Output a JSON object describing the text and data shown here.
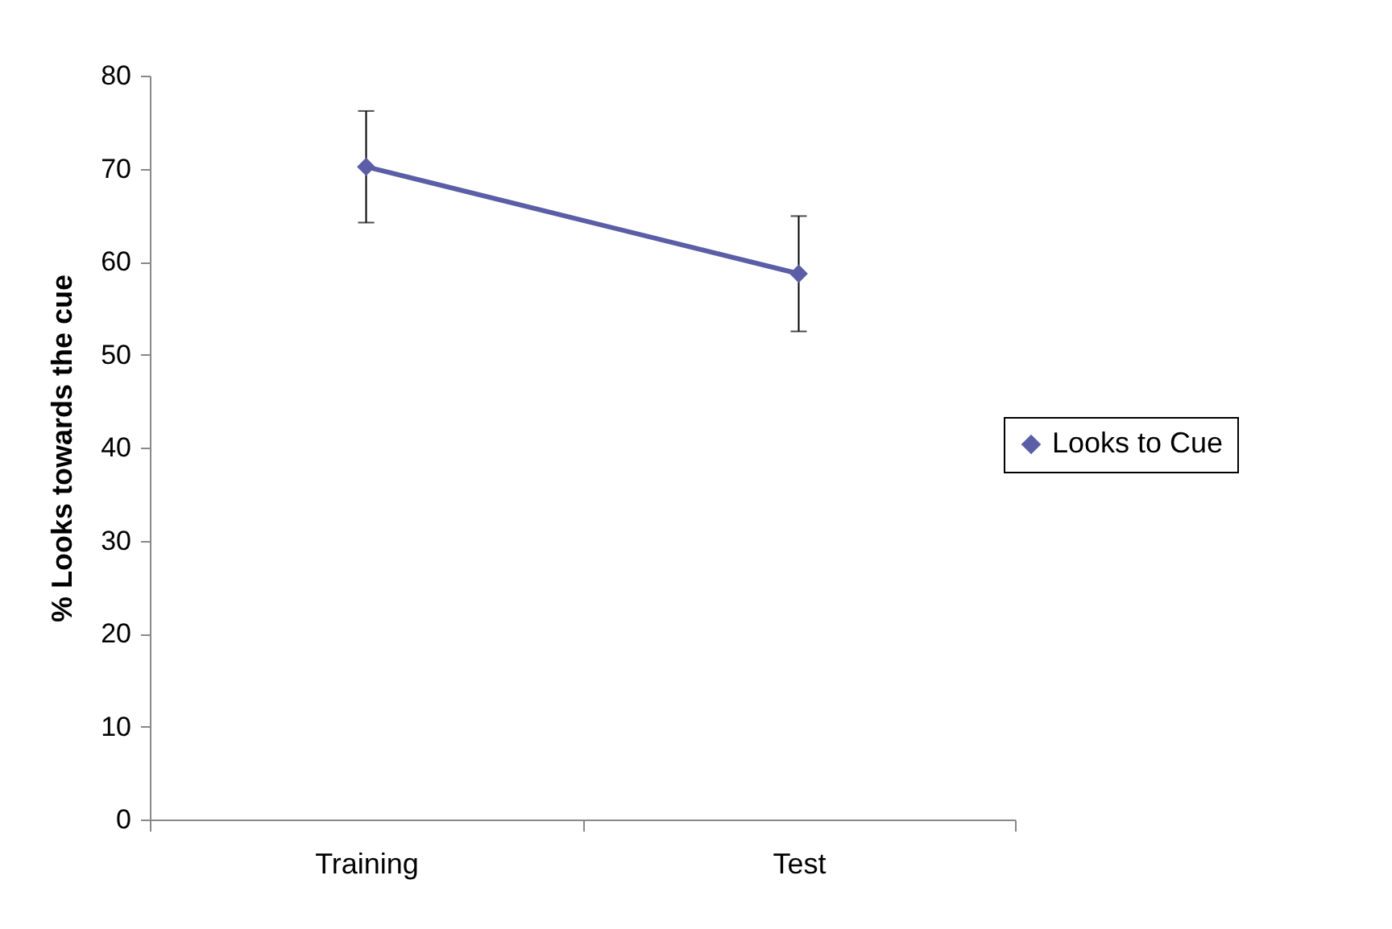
{
  "chart_data": {
    "type": "line",
    "ylabel": "% Looks towards the cue",
    "categories": [
      "Training",
      "Test"
    ],
    "series": [
      {
        "name": "Looks to Cue",
        "color": "#5b5ea6",
        "values": [
          70.2,
          58.7
        ],
        "errors": [
          6,
          6.2
        ]
      }
    ],
    "ylim": [
      0,
      80
    ],
    "yticks": [
      0,
      10,
      20,
      30,
      40,
      50,
      60,
      70,
      80
    ],
    "grid": false,
    "legend": "right",
    "marker": "diamond",
    "line_style": "solid"
  }
}
